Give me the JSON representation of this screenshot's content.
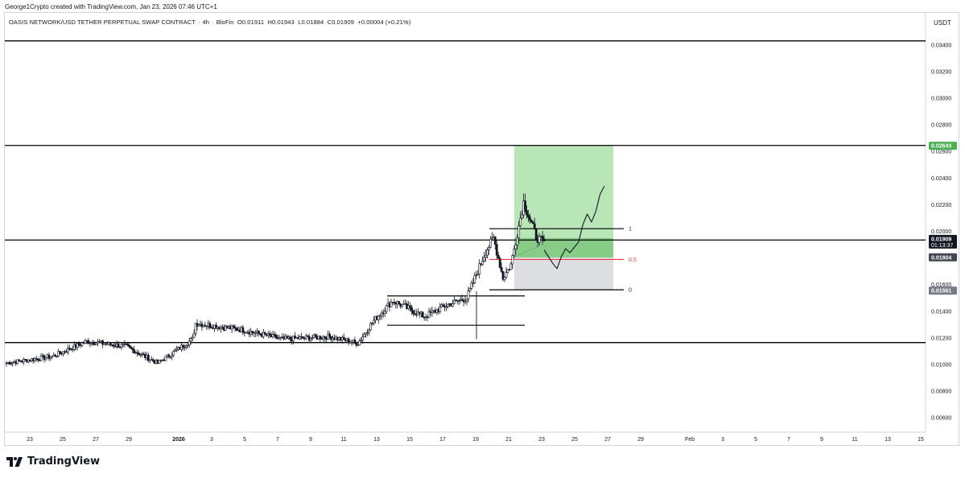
{
  "credit": "George1Crypto created with TradingView.com, Jan 23, 2026 07:46 UTC+1",
  "legend": {
    "symbol": "OASIS NETWORK/USD TETHER PERPETUAL SWAP CONTRACT",
    "interval": "4h",
    "exchange": "BloFin",
    "open": "O0.01911",
    "high": "H0.01943",
    "low": "L0.01884",
    "close": "C0.01909",
    "change": "+0.00004 (+0.21%)"
  },
  "currency": "USDT",
  "brand": "TradingView",
  "colors": {
    "candle": "#131722",
    "horizontal_line": "#000000",
    "target_zone": "#7fd17a",
    "stop_zone": "#b2b5be",
    "half_level": "#f23645",
    "half_label": "#f23645",
    "target_badge": "#4caf50",
    "price_badge": "#131722",
    "entry_badge": "#434651",
    "stop_badge": "#787b86",
    "axis_text": "#131722"
  },
  "chart_data": {
    "type": "candlestick",
    "interval": "4h",
    "y_axis": {
      "unit": "USDT",
      "ticks": [
        "0.03400",
        "0.03200",
        "0.03000",
        "0.02800",
        "0.02600",
        "0.02400",
        "0.02200",
        "0.02000",
        "0.01800",
        "0.01600",
        "0.01400",
        "0.01200",
        "0.01000",
        "0.00800",
        "0.00600"
      ],
      "range": [
        0.0047,
        0.0345
      ]
    },
    "x_axis": {
      "ticks": [
        "23",
        "25",
        "27",
        "29",
        "2026",
        "3",
        "5",
        "7",
        "9",
        "11",
        "13",
        "15",
        "17",
        "19",
        "21",
        "23",
        "25",
        "27",
        "29",
        "Feb",
        "3",
        "5",
        "7",
        "9",
        "11",
        "13",
        "15"
      ]
    },
    "price_labels": [
      {
        "value": "0.02643",
        "role": "target"
      },
      {
        "value": "0.01909",
        "role": "last",
        "countdown": "01:13:37"
      },
      {
        "value": "0.01804",
        "role": "entry"
      },
      {
        "value": "0.01561",
        "role": "stop"
      }
    ],
    "horizontal_levels": [
      0.0343,
      0.02645,
      0.01935,
      0.01165
    ],
    "fib_levels": [
      {
        "label": "1",
        "value": 0.0202
      },
      {
        "label": "0.5",
        "value": 0.01789
      },
      {
        "label": "0",
        "value": 0.01561
      }
    ],
    "long_position": {
      "entry": 0.01804,
      "target": 0.02643,
      "stop": 0.01561
    },
    "support_boxes": [
      {
        "top": 0.01515,
        "bottom": 0.01295
      }
    ],
    "projection_path": [
      0.0186,
      0.0181,
      0.0176,
      0.0172,
      0.0181,
      0.0187,
      0.0184,
      0.0188,
      0.0192,
      0.0205,
      0.0213,
      0.0207,
      0.0215,
      0.0228,
      0.0234
    ],
    "candles": {
      "segments": [
        {
          "n": 30,
          "from": 0.0101,
          "to": 0.0106
        },
        {
          "n": 22,
          "from": 0.0106,
          "to": 0.01175
        },
        {
          "n": 25,
          "from": 0.01175,
          "to": 0.01135
        },
        {
          "n": 20,
          "from": 0.01135,
          "to": 0.0101
        },
        {
          "n": 22,
          "from": 0.0101,
          "to": 0.0119
        },
        {
          "n": 2,
          "from": 0.0119,
          "to": 0.0131
        },
        {
          "n": 30,
          "from": 0.0131,
          "to": 0.0126
        },
        {
          "n": 25,
          "from": 0.0126,
          "to": 0.0119
        },
        {
          "n": 30,
          "from": 0.0119,
          "to": 0.0121
        },
        {
          "n": 18,
          "from": 0.0121,
          "to": 0.0116
        },
        {
          "n": 10,
          "from": 0.0116,
          "to": 0.0133
        },
        {
          "n": 12,
          "from": 0.0133,
          "to": 0.0148
        },
        {
          "n": 20,
          "from": 0.0148,
          "to": 0.0136
        },
        {
          "n": 15,
          "from": 0.0136,
          "to": 0.0145
        },
        {
          "n": 12,
          "from": 0.0145,
          "to": 0.015
        },
        {
          "n": 12,
          "from": 0.015,
          "to": 0.0185
        },
        {
          "n": 5,
          "from": 0.0185,
          "to": 0.0195
        },
        {
          "n": 6,
          "from": 0.0195,
          "to": 0.0165
        },
        {
          "n": 5,
          "from": 0.0165,
          "to": 0.0175
        },
        {
          "n": 8,
          "from": 0.0175,
          "to": 0.0222
        },
        {
          "n": 8,
          "from": 0.0222,
          "to": 0.0196
        },
        {
          "n": 5,
          "from": 0.0196,
          "to": 0.0191
        }
      ]
    }
  }
}
